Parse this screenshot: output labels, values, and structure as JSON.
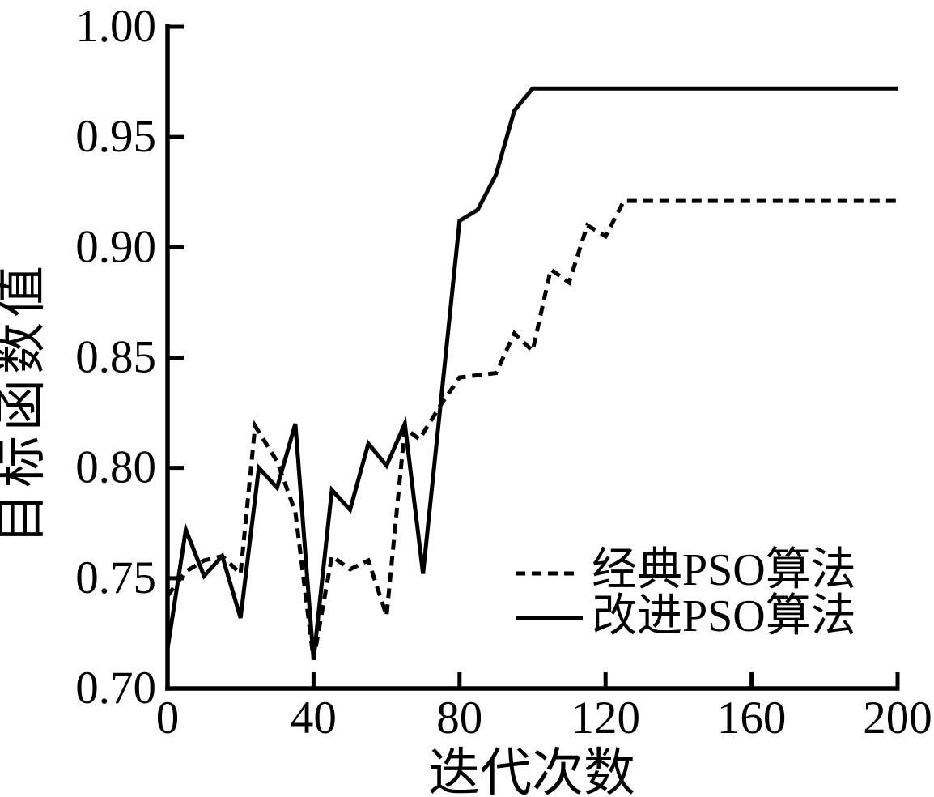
{
  "chart_data": {
    "type": "line",
    "title": "",
    "xlabel": "迭代次数",
    "ylabel": "目标函数值",
    "xlim": [
      0,
      200
    ],
    "ylim": [
      0.7,
      1.0
    ],
    "x_ticks": [
      "0",
      "40",
      "80",
      "120",
      "160",
      "200"
    ],
    "y_ticks": [
      "0.70",
      "0.75",
      "0.80",
      "0.85",
      "0.90",
      "0.95",
      "1.00"
    ],
    "grid": false,
    "legend_position": "inside-right-lower",
    "colors": {
      "foreground": "#000000",
      "background": "#ffffff"
    },
    "series": [
      {
        "key": "classic-pso",
        "name": "经典PSO算法",
        "style": "dashed",
        "final_value": 0.921,
        "points": [
          [
            0,
            0.742
          ],
          [
            5,
            0.753
          ],
          [
            10,
            0.758
          ],
          [
            15,
            0.76
          ],
          [
            20,
            0.752
          ],
          [
            24,
            0.819
          ],
          [
            30,
            0.803
          ],
          [
            35,
            0.78
          ],
          [
            40,
            0.713
          ],
          [
            45,
            0.76
          ],
          [
            50,
            0.754
          ],
          [
            55,
            0.758
          ],
          [
            60,
            0.733
          ],
          [
            65,
            0.818
          ],
          [
            69,
            0.813
          ],
          [
            75,
            0.829
          ],
          [
            80,
            0.841
          ],
          [
            90,
            0.843
          ],
          [
            95,
            0.861
          ],
          [
            100,
            0.853
          ],
          [
            105,
            0.89
          ],
          [
            110,
            0.884
          ],
          [
            115,
            0.91
          ],
          [
            120,
            0.905
          ],
          [
            125,
            0.921
          ],
          [
            200,
            0.921
          ]
        ]
      },
      {
        "key": "improved-pso",
        "name": "改进PSO算法",
        "style": "solid",
        "final_value": 0.972,
        "points": [
          [
            0,
            0.718
          ],
          [
            5,
            0.772
          ],
          [
            10,
            0.751
          ],
          [
            15,
            0.76
          ],
          [
            20,
            0.732
          ],
          [
            25,
            0.8
          ],
          [
            30,
            0.791
          ],
          [
            35,
            0.82
          ],
          [
            40,
            0.713
          ],
          [
            45,
            0.79
          ],
          [
            50,
            0.781
          ],
          [
            55,
            0.811
          ],
          [
            60,
            0.801
          ],
          [
            65,
            0.82
          ],
          [
            70,
            0.752
          ],
          [
            80,
            0.912
          ],
          [
            85,
            0.917
          ],
          [
            90,
            0.933
          ],
          [
            95,
            0.962
          ],
          [
            100,
            0.972
          ],
          [
            200,
            0.972
          ]
        ]
      }
    ]
  }
}
